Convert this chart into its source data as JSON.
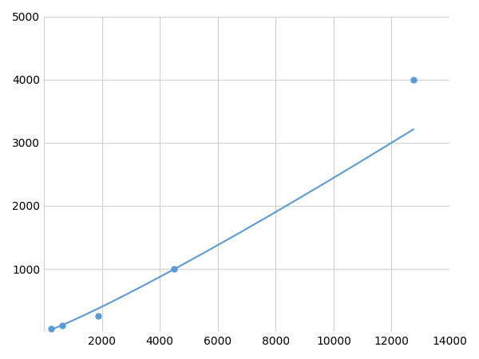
{
  "x_data": [
    250,
    625,
    1875,
    4500,
    12750
  ],
  "y_data": [
    50,
    100,
    250,
    1000,
    4000
  ],
  "line_color": "#5b9bd5",
  "marker_color": "#5b9bd5",
  "marker_size": 5,
  "line_width": 1.5,
  "xlim": [
    0,
    14000
  ],
  "ylim": [
    0,
    5000
  ],
  "xticks": [
    0,
    2000,
    4000,
    6000,
    8000,
    10000,
    12000,
    14000
  ],
  "yticks": [
    0,
    1000,
    2000,
    3000,
    4000,
    5000
  ],
  "xtick_labels": [
    "",
    "2000",
    "4000",
    "6000",
    "8000",
    "10000",
    "12000",
    "14000"
  ],
  "ytick_labels": [
    "",
    "1000",
    "2000",
    "3000",
    "4000",
    "5000"
  ],
  "grid_color": "#d0d0d0",
  "grid_linewidth": 0.8,
  "background_color": "#ffffff",
  "figure_background": "#ffffff",
  "tick_fontsize": 10
}
